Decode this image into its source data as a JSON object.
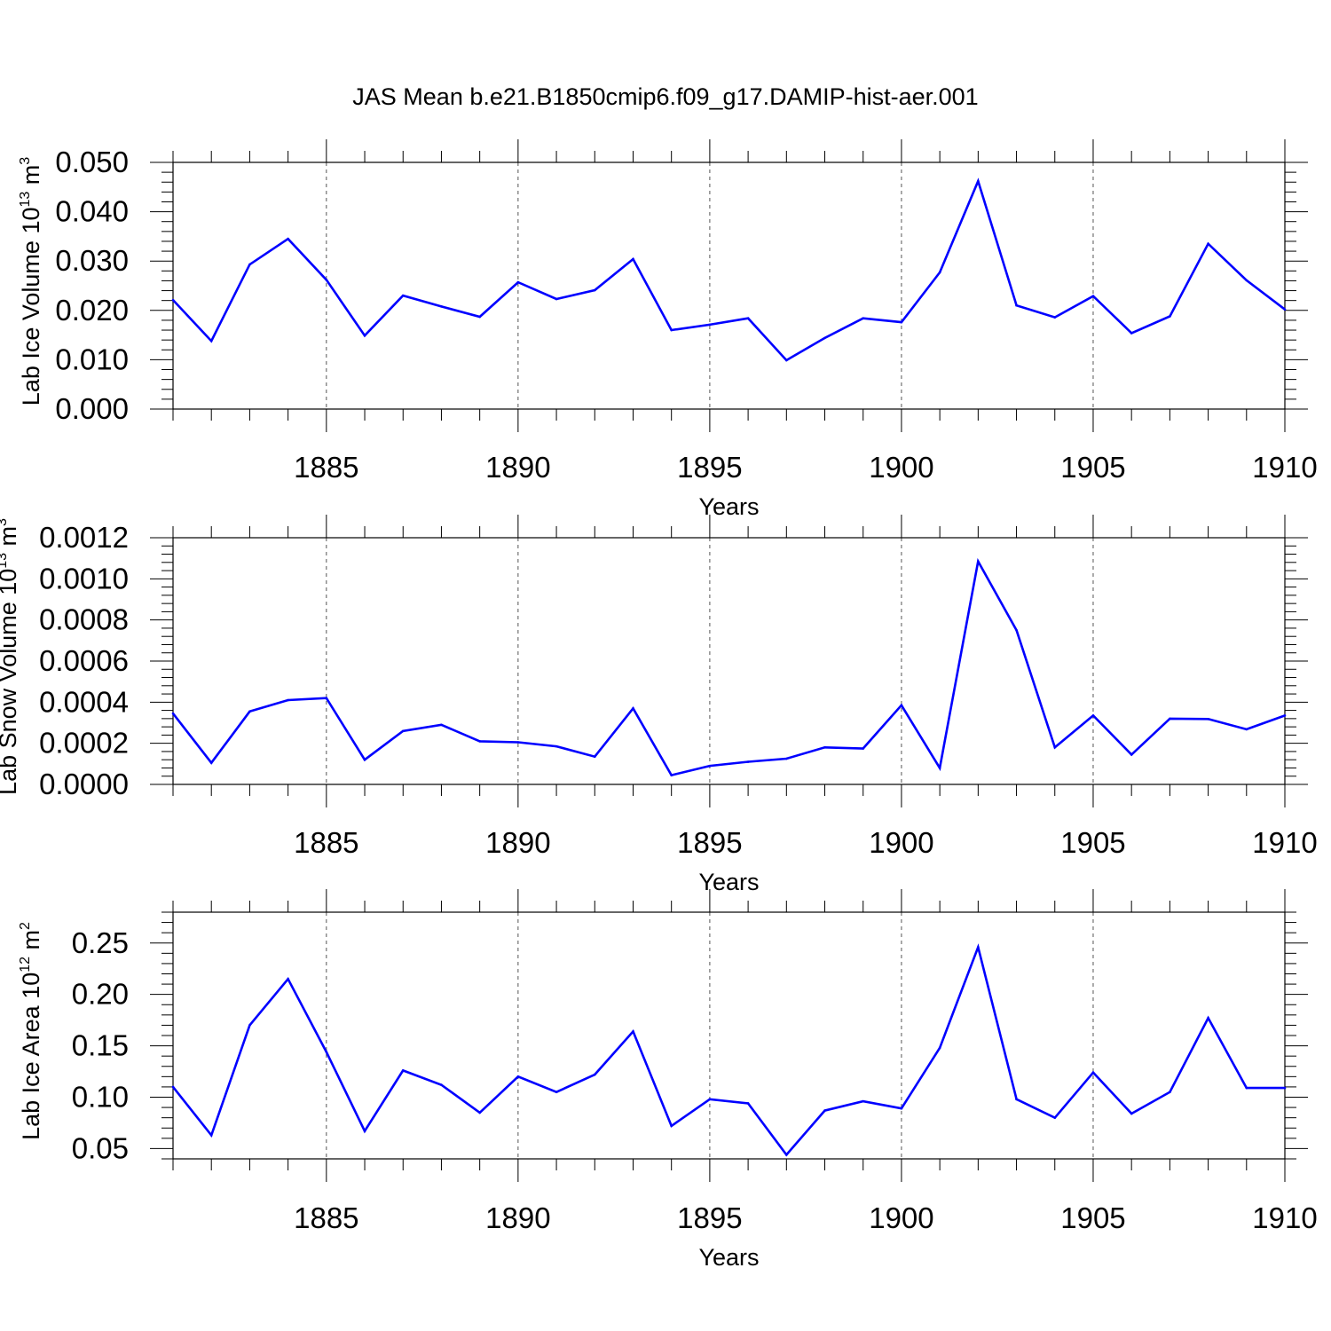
{
  "title": "JAS Mean b.e21.B1850cmip6.f09_g17.DAMIP-hist-aer.001",
  "line_color": "#0000ff",
  "chart_data": [
    {
      "type": "line",
      "ylabel": {
        "text": "Lab Ice Volume 10",
        "sup": "13",
        "unit": " m",
        "unit_sup": "3"
      },
      "xlabel": "Years",
      "xlim": [
        1881,
        1910
      ],
      "ylim": [
        0.0,
        0.05
      ],
      "x_ticks": [
        1885,
        1890,
        1895,
        1900,
        1905,
        1910
      ],
      "y_ticks": [
        "0.000",
        "0.010",
        "0.020",
        "0.030",
        "0.040",
        "0.050"
      ],
      "grid": "dashed vertical at major x ticks",
      "x": [
        1881,
        1882,
        1883,
        1884,
        1885,
        1886,
        1887,
        1888,
        1889,
        1890,
        1891,
        1892,
        1893,
        1894,
        1895,
        1896,
        1897,
        1898,
        1899,
        1900,
        1901,
        1902,
        1903,
        1904,
        1905,
        1906,
        1907,
        1908,
        1909,
        1910
      ],
      "values": [
        0.0221,
        0.0138,
        0.0293,
        0.0345,
        0.0262,
        0.0149,
        0.023,
        0.0208,
        0.0187,
        0.0257,
        0.0223,
        0.0241,
        0.0304,
        0.016,
        0.0171,
        0.0184,
        0.0099,
        0.0144,
        0.0184,
        0.0176,
        0.0277,
        0.0462,
        0.021,
        0.0186,
        0.0229,
        0.0154,
        0.0188,
        0.0335,
        0.0261,
        0.0202
      ]
    },
    {
      "type": "line",
      "ylabel": {
        "text": "Lab Snow Volume 10",
        "sup": "13",
        "unit": " m",
        "unit_sup": "3"
      },
      "xlabel": "Years",
      "xlim": [
        1881,
        1910
      ],
      "ylim": [
        0.0,
        0.0012
      ],
      "x_ticks": [
        1885,
        1890,
        1895,
        1900,
        1905,
        1910
      ],
      "y_ticks": [
        "0.0000",
        "0.0002",
        "0.0004",
        "0.0006",
        "0.0008",
        "0.0010",
        "0.0012"
      ],
      "grid": "dashed vertical at major x ticks",
      "x": [
        1881,
        1882,
        1883,
        1884,
        1885,
        1886,
        1887,
        1888,
        1889,
        1890,
        1891,
        1892,
        1893,
        1894,
        1895,
        1896,
        1897,
        1898,
        1899,
        1900,
        1901,
        1902,
        1903,
        1904,
        1905,
        1906,
        1907,
        1908,
        1909,
        1910
      ],
      "values": [
        0.000345,
        0.000105,
        0.000355,
        0.00041,
        0.00042,
        0.00012,
        0.00026,
        0.00029,
        0.00021,
        0.000205,
        0.000185,
        0.000135,
        0.00037,
        4.5e-05,
        9e-05,
        0.00011,
        0.000125,
        0.00018,
        0.000175,
        0.000385,
        8e-05,
        0.001085,
        0.00075,
        0.00018,
        0.000335,
        0.000145,
        0.00032,
        0.000318,
        0.000268,
        0.000335
      ]
    },
    {
      "type": "line",
      "ylabel": {
        "text": "Lab Ice Area 10",
        "sup": "12",
        "unit": " m",
        "unit_sup": "2"
      },
      "xlabel": "Years",
      "xlim": [
        1881,
        1910
      ],
      "ylim": [
        0.04,
        0.28
      ],
      "x_ticks": [
        1885,
        1890,
        1895,
        1900,
        1905,
        1910
      ],
      "y_ticks": [
        "0.05",
        "0.10",
        "0.15",
        "0.20",
        "0.25"
      ],
      "grid": "dashed vertical at major x ticks",
      "x": [
        1881,
        1882,
        1883,
        1884,
        1885,
        1886,
        1887,
        1888,
        1889,
        1890,
        1891,
        1892,
        1893,
        1894,
        1895,
        1896,
        1897,
        1898,
        1899,
        1900,
        1901,
        1902,
        1903,
        1904,
        1905,
        1906,
        1907,
        1908,
        1909,
        1910
      ],
      "values": [
        0.11,
        0.063,
        0.17,
        0.215,
        0.144,
        0.067,
        0.126,
        0.112,
        0.085,
        0.12,
        0.105,
        0.122,
        0.164,
        0.072,
        0.098,
        0.094,
        0.044,
        0.087,
        0.096,
        0.089,
        0.148,
        0.246,
        0.098,
        0.08,
        0.124,
        0.084,
        0.105,
        0.177,
        0.109,
        0.109
      ]
    }
  ]
}
